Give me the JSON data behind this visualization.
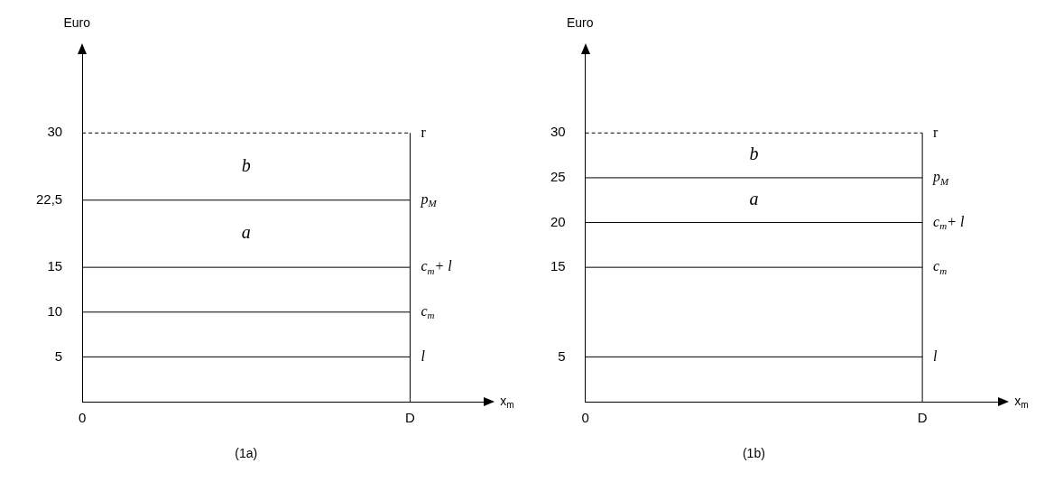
{
  "chart_data": [
    {
      "type": "line",
      "ylabel": "Euro",
      "xlabel": "x$_{m}$",
      "annotations": [
        "(1a)",
        "b",
        "a"
      ],
      "categories": [
        "0",
        "D"
      ],
      "ylim": [
        0,
        39
      ],
      "yticks": [
        5,
        10,
        15,
        {
          "value": 22.5,
          "label": "22,5"
        },
        30
      ],
      "grid": false,
      "legend": false,
      "marker": "none",
      "ref_lines": [
        {
          "axis": "x",
          "value": "D",
          "color": "#000000"
        }
      ],
      "series": [
        {
          "name": "r",
          "color": "#000000",
          "values": [
            30,
            30
          ],
          "line_style": "dashed"
        },
        {
          "name": "p$_{M}$",
          "color": "#000000",
          "values": [
            22.5,
            22.5
          ]
        },
        {
          "name": "c$_{m}$+ l",
          "color": "#000000",
          "values": [
            15,
            15
          ]
        },
        {
          "name": "c$_{m}$",
          "color": "#000000",
          "values": [
            10,
            10
          ]
        },
        {
          "name": "l",
          "color": "#000000",
          "values": [
            5,
            5
          ]
        }
      ]
    },
    {
      "type": "line",
      "ylabel": "Euro",
      "xlabel": "x$_{m}$",
      "annotations": [
        "(1b)",
        "b",
        "a"
      ],
      "categories": [
        "0",
        "D"
      ],
      "ylim": [
        0,
        39
      ],
      "yticks": [
        5,
        15,
        20,
        25,
        30
      ],
      "grid": false,
      "legend": false,
      "marker": "none",
      "ref_lines": [
        {
          "axis": "x",
          "value": "D",
          "color": "#000000"
        }
      ],
      "series": [
        {
          "name": "r",
          "color": "#000000",
          "values": [
            30,
            30
          ],
          "line_style": "dashed"
        },
        {
          "name": "p$_{M}$",
          "color": "#000000",
          "values": [
            25,
            25
          ]
        },
        {
          "name": "c$_{m}$+ l",
          "color": "#000000",
          "values": [
            20,
            20
          ]
        },
        {
          "name": "c$_{m}$",
          "color": "#000000",
          "values": [
            15,
            15
          ]
        },
        {
          "name": "l",
          "color": "#000000",
          "values": [
            5,
            5
          ]
        }
      ]
    }
  ]
}
